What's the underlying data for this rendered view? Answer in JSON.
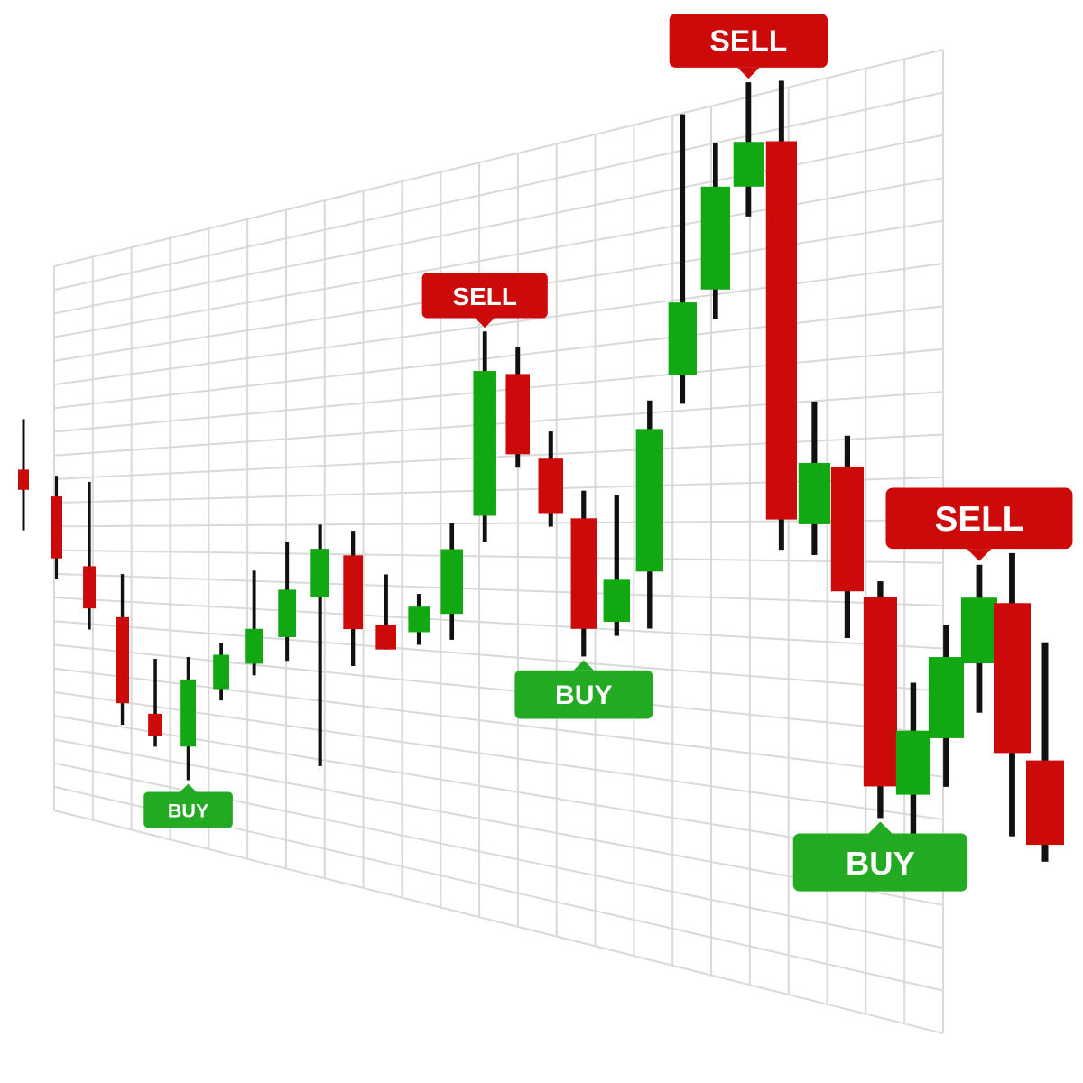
{
  "colors": {
    "bull": "#12a812",
    "bear": "#cc0a0a",
    "wick": "#111111",
    "grid": "#d9d9d9",
    "buy_tag": "#22aa22",
    "sell_tag": "#cc0a0a",
    "tag_text": "#ffffff"
  },
  "chart_data": {
    "type": "candlestick",
    "grid": true,
    "perspective": "3d-receding-plane",
    "candles": [
      {
        "i": 1,
        "open": 58.0,
        "high": 63.0,
        "low": 52.0,
        "close": 56.0
      },
      {
        "i": 2,
        "open": 56.0,
        "high": 58.0,
        "low": 48.0,
        "close": 50.0
      },
      {
        "i": 3,
        "open": 50.0,
        "high": 58.0,
        "low": 44.0,
        "close": 46.0
      },
      {
        "i": 4,
        "open": 46.0,
        "high": 50.0,
        "low": 36.0,
        "close": 38.0
      },
      {
        "i": 5,
        "open": 38.0,
        "high": 43.0,
        "low": 35.0,
        "close": 36.0
      },
      {
        "i": 6,
        "open": 36.0,
        "high": 44.0,
        "low": 33.0,
        "close": 42.0
      },
      {
        "i": 7,
        "open": 42.0,
        "high": 46.0,
        "low": 41.0,
        "close": 45.0
      },
      {
        "i": 8,
        "open": 45.0,
        "high": 53.0,
        "low": 44.0,
        "close": 48.0
      },
      {
        "i": 9,
        "open": 48.0,
        "high": 56.0,
        "low": 46.0,
        "close": 52.0
      },
      {
        "i": 10,
        "open": 52.0,
        "high": 58.0,
        "low": 38.0,
        "close": 56.0
      },
      {
        "i": 11,
        "open": 56.0,
        "high": 58.0,
        "low": 47.0,
        "close": 50.0
      },
      {
        "i": 12,
        "open": 51.0,
        "high": 55.0,
        "low": 49.0,
        "close": 49.0
      },
      {
        "i": 13,
        "open": 51.0,
        "high": 54.0,
        "low": 50.0,
        "close": 53.0
      },
      {
        "i": 14,
        "open": 53.0,
        "high": 60.0,
        "low": 51.0,
        "close": 58.0
      },
      {
        "i": 15,
        "open": 61.0,
        "high": 75.0,
        "low": 59.0,
        "close": 72.0
      },
      {
        "i": 16,
        "open": 72.0,
        "high": 74.0,
        "low": 65.0,
        "close": 66.0
      },
      {
        "i": 17,
        "open": 66.0,
        "high": 68.0,
        "low": 61.0,
        "close": 62.0
      },
      {
        "i": 18,
        "open": 62.0,
        "high": 64.0,
        "low": 52.0,
        "close": 54.0
      },
      {
        "i": 19,
        "open": 55.0,
        "high": 64.0,
        "low": 54.0,
        "close": 58.0
      },
      {
        "i": 20,
        "open": 59.0,
        "high": 71.0,
        "low": 55.0,
        "close": 69.0
      },
      {
        "i": 21,
        "open": 73.0,
        "high": 91.0,
        "low": 71.0,
        "close": 78.0
      },
      {
        "i": 22,
        "open": 79.0,
        "high": 89.0,
        "low": 77.0,
        "close": 86.0
      },
      {
        "i": 23,
        "open": 86.0,
        "high": 93.0,
        "low": 84.0,
        "close": 89.0
      },
      {
        "i": 24,
        "open": 89.0,
        "high": 93.0,
        "low": 62.0,
        "close": 64.0
      },
      {
        "i": 25,
        "open": 64.0,
        "high": 72.0,
        "low": 62.0,
        "close": 68.0
      },
      {
        "i": 26,
        "open": 68.0,
        "high": 70.0,
        "low": 57.0,
        "close": 60.0
      },
      {
        "i": 27,
        "open": 60.0,
        "high": 61.0,
        "low": 46.0,
        "close": 48.0
      },
      {
        "i": 28,
        "open": 48.0,
        "high": 55.0,
        "low": 43.0,
        "close": 52.0
      },
      {
        "i": 29,
        "open": 52.0,
        "high": 59.0,
        "low": 49.0,
        "close": 57.0
      },
      {
        "i": 30,
        "open": 57.0,
        "high": 63.0,
        "low": 54.0,
        "close": 61.0
      },
      {
        "i": 31,
        "open": 61.0,
        "high": 64.0,
        "low": 47.0,
        "close": 52.0
      },
      {
        "i": 32,
        "open": 52.0,
        "high": 59.0,
        "low": 46.0,
        "close": 47.0
      }
    ],
    "signals": [
      {
        "label": "BUY",
        "type": "buy",
        "candle": 6
      },
      {
        "label": "SELL",
        "type": "sell",
        "candle": 15
      },
      {
        "label": "BUY",
        "type": "buy",
        "candle": 18
      },
      {
        "label": "SELL",
        "type": "sell",
        "candle": 23
      },
      {
        "label": "BUY",
        "type": "buy",
        "candle": 27
      },
      {
        "label": "SELL",
        "type": "sell",
        "candle": 30
      }
    ]
  }
}
